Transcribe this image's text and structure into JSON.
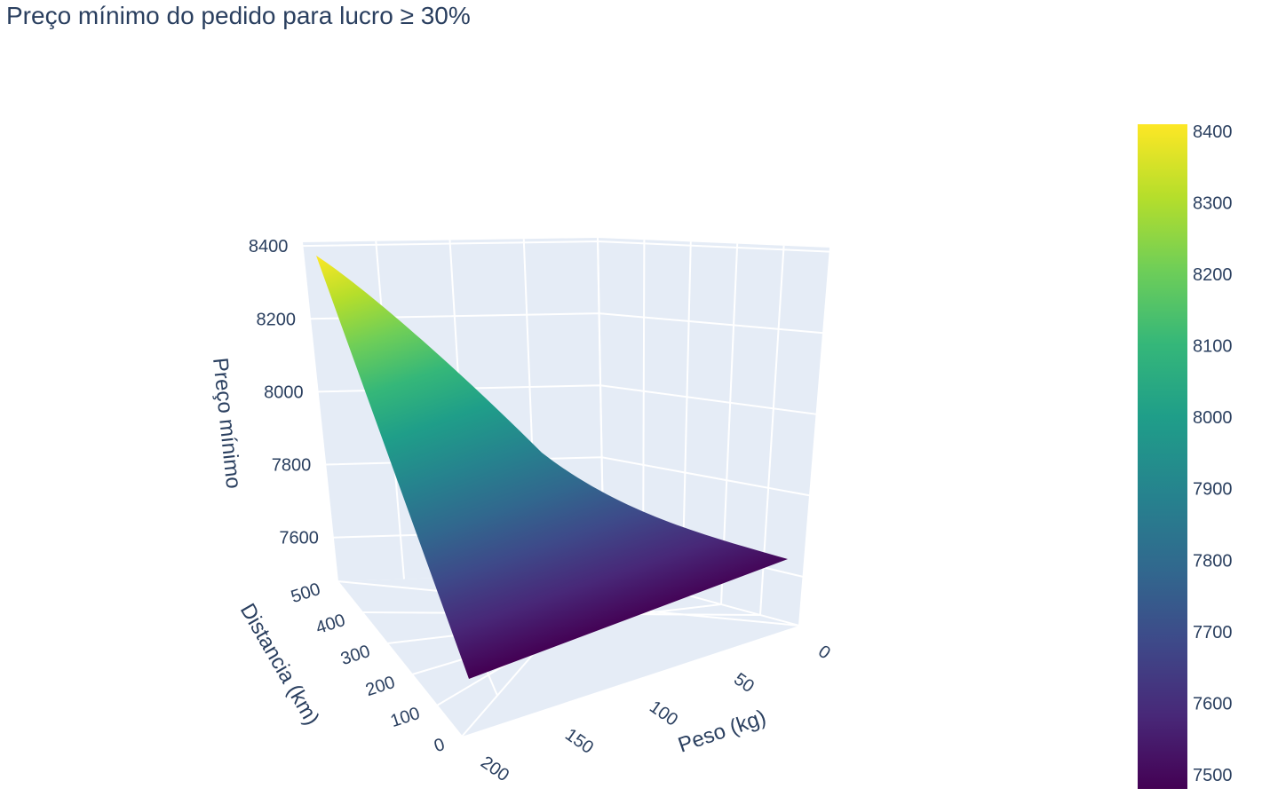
{
  "chart_data": {
    "type": "surface",
    "title": "Preço mínimo do pedido para lucro ≥ 30%",
    "x_axis": {
      "label": "Peso (kg)",
      "ticks": [
        0,
        50,
        100,
        150,
        200
      ],
      "range": [
        0,
        200
      ]
    },
    "y_axis": {
      "label": "Distancia (km)",
      "ticks": [
        0,
        100,
        200,
        300,
        400,
        500
      ],
      "range": [
        0,
        500
      ]
    },
    "z_axis": {
      "label": "Preço mínimo",
      "ticks": [
        7600,
        7800,
        8000,
        8200,
        8400
      ],
      "range": [
        7480,
        8410
      ]
    },
    "corners": [
      {
        "peso": 0,
        "distancia": 0,
        "preco": 7500
      },
      {
        "peso": 200,
        "distancia": 0,
        "preco": 7500
      },
      {
        "peso": 0,
        "distancia": 500,
        "preco": 7500
      },
      {
        "peso": 200,
        "distancia": 500,
        "preco": 8400
      }
    ],
    "colorscale": "viridis",
    "colorbar": {
      "ticks": [
        7500,
        7600,
        7700,
        7800,
        7900,
        8000,
        8100,
        8200,
        8300,
        8400
      ],
      "range": [
        7480,
        8410
      ]
    }
  }
}
